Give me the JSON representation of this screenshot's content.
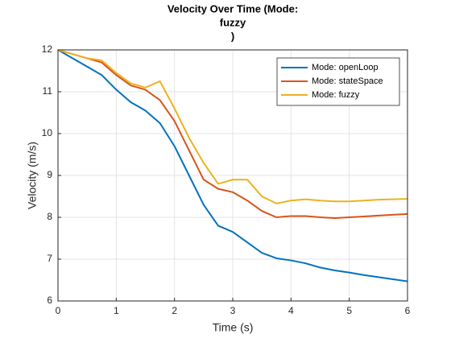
{
  "chart_data": {
    "type": "line",
    "title": [
      "Velocity Over Time (Mode:",
      "fuzzy",
      ")"
    ],
    "xlabel": "Time (s)",
    "ylabel": "Velocity (m/s)",
    "x": [
      0,
      0.25,
      0.5,
      0.75,
      1,
      1.25,
      1.5,
      1.75,
      2,
      2.25,
      2.5,
      2.75,
      3,
      3.25,
      3.5,
      3.75,
      4,
      4.25,
      4.5,
      4.75,
      5,
      5.25,
      5.5,
      5.75,
      6
    ],
    "series": [
      {
        "name": "Mode: openLoop",
        "color": "#0072bd",
        "values": [
          12,
          11.8,
          11.6,
          11.4,
          11.05,
          10.75,
          10.55,
          10.25,
          9.7,
          9.0,
          8.3,
          7.8,
          7.65,
          7.4,
          7.15,
          7.02,
          6.97,
          6.9,
          6.8,
          6.73,
          6.68,
          6.62,
          6.57,
          6.52,
          6.47
        ]
      },
      {
        "name": "Mode: stateSpace",
        "color": "#d95319",
        "values": [
          12,
          11.9,
          11.8,
          11.7,
          11.4,
          11.15,
          11.05,
          10.8,
          10.3,
          9.6,
          8.9,
          8.68,
          8.6,
          8.4,
          8.15,
          8.0,
          8.03,
          8.03,
          8.0,
          7.98,
          8.0,
          8.02,
          8.04,
          8.06,
          8.08
        ]
      },
      {
        "name": "Mode: fuzzy",
        "color": "#edb120",
        "values": [
          12,
          11.9,
          11.8,
          11.75,
          11.45,
          11.2,
          11.1,
          11.25,
          10.6,
          9.9,
          9.3,
          8.8,
          8.9,
          8.9,
          8.5,
          8.33,
          8.4,
          8.43,
          8.4,
          8.38,
          8.38,
          8.4,
          8.42,
          8.43,
          8.44
        ]
      }
    ],
    "xlim": [
      0,
      6
    ],
    "xticks": [
      0,
      1,
      2,
      3,
      4,
      5,
      6
    ],
    "ylim": [
      6,
      12
    ],
    "yticks": [
      6,
      7,
      8,
      9,
      10,
      11,
      12
    ],
    "grid": true,
    "legend": "northeast"
  }
}
